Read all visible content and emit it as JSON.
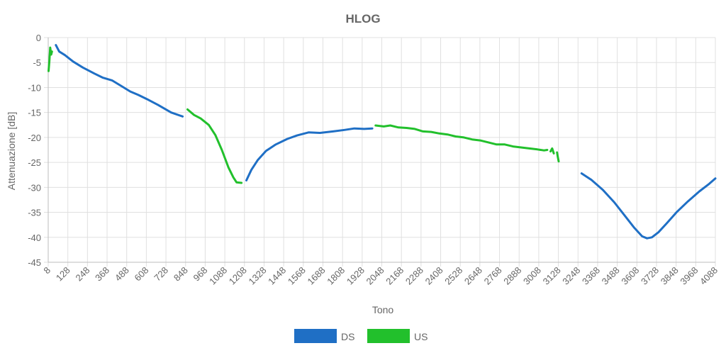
{
  "chart_data": {
    "type": "line",
    "title": "HLOG",
    "xlabel": "Tono",
    "ylabel": "Attenuazione [dB]",
    "xlim": [
      8,
      4088
    ],
    "ylim": [
      -45,
      0
    ],
    "grid": true,
    "legend_position": "bottom",
    "x_ticks": [
      "8",
      "128",
      "248",
      "368",
      "488",
      "608",
      "728",
      "848",
      "968",
      "1088",
      "1208",
      "1328",
      "1448",
      "1568",
      "1688",
      "1808",
      "1928",
      "2048",
      "2168",
      "2288",
      "2408",
      "2528",
      "2648",
      "2768",
      "2888",
      "3008",
      "3128",
      "3248",
      "3368",
      "3488",
      "3608",
      "3728",
      "3848",
      "3968",
      "4088"
    ],
    "y_ticks": [
      "0",
      "-5",
      "-10",
      "-15",
      "-20",
      "-25",
      "-30",
      "-35",
      "-40",
      "-45"
    ],
    "series": [
      {
        "name": "DS",
        "color": "#1f6fc5",
        "segments": [
          [
            [
              55,
              -1.5
            ],
            [
              75,
              -2.8
            ],
            [
              110,
              -3.5
            ],
            [
              160,
              -4.8
            ],
            [
              220,
              -6
            ],
            [
              290,
              -7.2
            ],
            [
              340,
              -8
            ],
            [
              400,
              -8.6
            ],
            [
              460,
              -9.8
            ],
            [
              510,
              -10.8
            ],
            [
              560,
              -11.5
            ],
            [
              610,
              -12.3
            ],
            [
              680,
              -13.5
            ],
            [
              760,
              -15
            ],
            [
              830,
              -15.8
            ]
          ],
          [
            [
              1220,
              -28.6
            ],
            [
              1250,
              -26.5
            ],
            [
              1290,
              -24.5
            ],
            [
              1340,
              -22.7
            ],
            [
              1400,
              -21.4
            ],
            [
              1470,
              -20.3
            ],
            [
              1530,
              -19.6
            ],
            [
              1600,
              -19
            ],
            [
              1670,
              -19.1
            ],
            [
              1750,
              -18.8
            ],
            [
              1820,
              -18.5
            ],
            [
              1880,
              -18.2
            ],
            [
              1940,
              -18.3
            ],
            [
              1990,
              -18.2
            ]
          ],
          [
            [
              3270,
              -27.2
            ],
            [
              3330,
              -28.5
            ],
            [
              3400,
              -30.5
            ],
            [
              3470,
              -33
            ],
            [
              3530,
              -35.5
            ],
            [
              3590,
              -38
            ],
            [
              3640,
              -39.8
            ],
            [
              3670,
              -40.2
            ],
            [
              3700,
              -40
            ],
            [
              3740,
              -39
            ],
            [
              3790,
              -37.2
            ],
            [
              3850,
              -35
            ],
            [
              3920,
              -32.8
            ],
            [
              3990,
              -30.8
            ],
            [
              4050,
              -29.3
            ],
            [
              4088,
              -28.2
            ]
          ]
        ]
      },
      {
        "name": "US",
        "color": "#22c02c",
        "segments": [
          [
            [
              10,
              -6.7
            ],
            [
              15,
              -4.8
            ],
            [
              20,
              -2
            ],
            [
              26,
              -3.4
            ],
            [
              31,
              -2.8
            ]
          ],
          [
            [
              860,
              -14.4
            ],
            [
              900,
              -15.5
            ],
            [
              940,
              -16.2
            ],
            [
              990,
              -17.5
            ],
            [
              1030,
              -19.5
            ],
            [
              1070,
              -22.5
            ],
            [
              1110,
              -26
            ],
            [
              1140,
              -28
            ],
            [
              1160,
              -29
            ],
            [
              1190,
              -29.1
            ]
          ],
          [
            [
              2010,
              -17.6
            ],
            [
              2060,
              -17.8
            ],
            [
              2100,
              -17.6
            ],
            [
              2150,
              -18
            ],
            [
              2200,
              -18.1
            ],
            [
              2250,
              -18.3
            ],
            [
              2300,
              -18.8
            ],
            [
              2350,
              -18.9
            ],
            [
              2400,
              -19.2
            ],
            [
              2450,
              -19.4
            ],
            [
              2500,
              -19.8
            ],
            [
              2550,
              -20
            ],
            [
              2600,
              -20.4
            ],
            [
              2650,
              -20.6
            ],
            [
              2700,
              -21
            ],
            [
              2750,
              -21.4
            ],
            [
              2800,
              -21.4
            ],
            [
              2850,
              -21.8
            ],
            [
              2900,
              -22
            ],
            [
              2950,
              -22.2
            ],
            [
              3000,
              -22.4
            ],
            [
              3040,
              -22.6
            ],
            [
              3060,
              -22.5
            ]
          ],
          [
            [
              3080,
              -22.8
            ],
            [
              3090,
              -22.2
            ],
            [
              3100,
              -23.2
            ]
          ],
          [
            [
              3120,
              -23
            ],
            [
              3125,
              -24
            ],
            [
              3130,
              -24.8
            ]
          ]
        ]
      }
    ]
  }
}
